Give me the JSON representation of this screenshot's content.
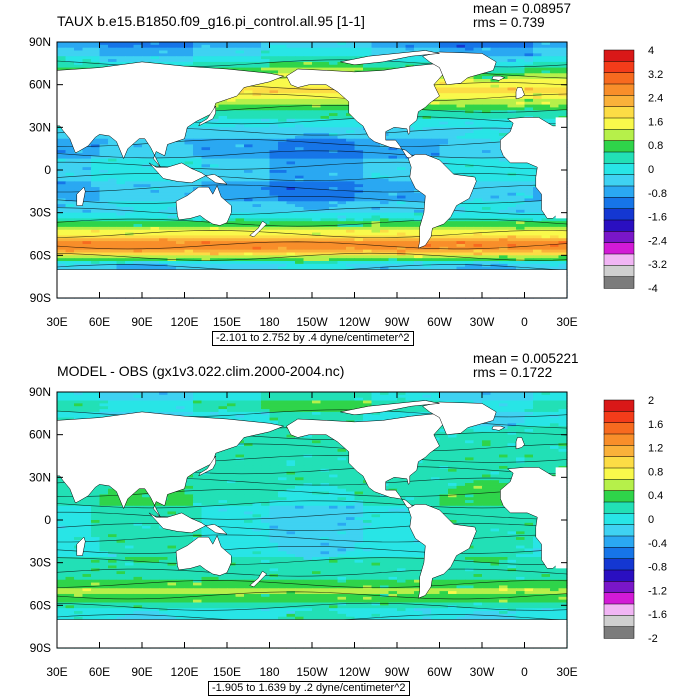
{
  "panels": [
    {
      "title": "TAUX b.e15.B1850.f09_g16.pi_control.all.95 [1-1]",
      "mean": "mean = 0.08957",
      "rms": "rms = 0.739",
      "range_label": "-2.101 to 2.752 by .4 dyne/centimeter^2",
      "colorbar_labels": [
        "4",
        "3.2",
        "2.4",
        "1.6",
        "0.8",
        "0",
        "-0.8",
        "-1.6",
        "-2.4",
        "-3.2",
        "-4"
      ],
      "colorbar_colors": [
        "#d91818",
        "#f43c1a",
        "#f76a1f",
        "#f88e2a",
        "#fab13a",
        "#fcdc45",
        "#f9f94b",
        "#b6f04a",
        "#2fd44a",
        "#22e0b6",
        "#28e5e6",
        "#3fd2f2",
        "#2aa8f2",
        "#1675e8",
        "#1437d2",
        "#2a0fc1",
        "#7a16c9",
        "#d21ad6",
        "#f1b5f4",
        "#cfcfcf",
        "#7c7c7c"
      ]
    },
    {
      "title": "MODEL - OBS (gx1v3.022.clim.2000-2004.nc)",
      "mean": "mean = 0.005221",
      "rms": "rms = 0.1722",
      "range_label": "-1.905 to 1.639 by .2 dyne/centimeter^2",
      "colorbar_labels": [
        "2",
        "1.6",
        "1.2",
        "0.8",
        "0.4",
        "0",
        "-0.4",
        "-0.8",
        "-1.2",
        "-1.6",
        "-2"
      ],
      "colorbar_colors": [
        "#d91818",
        "#f43c1a",
        "#f76a1f",
        "#f88e2a",
        "#fab13a",
        "#fcdc45",
        "#f9f94b",
        "#b6f04a",
        "#2fd44a",
        "#22e0b6",
        "#28e5e6",
        "#3fd2f2",
        "#2aa8f2",
        "#1675e8",
        "#1437d2",
        "#2a0fc1",
        "#7a16c9",
        "#d21ad6",
        "#f1b5f4",
        "#cfcfcf",
        "#7c7c7c"
      ]
    }
  ],
  "map": {
    "lat_labels": [
      "90N",
      "60N",
      "30N",
      "0",
      "30S",
      "60S",
      "90S"
    ],
    "lon_labels": [
      "30E",
      "60E",
      "90E",
      "120E",
      "150E",
      "180",
      "150W",
      "120W",
      "90W",
      "60W",
      "30W",
      "0",
      "30E"
    ],
    "land_color": "#ffffff"
  },
  "chart_data": [
    {
      "type": "heatmap",
      "title": "TAUX b.e15.B1850.f09_g16.pi_control.all.95 [1-1]",
      "xlabel": "",
      "ylabel": "",
      "x_ticks": [
        "30E",
        "60E",
        "90E",
        "120E",
        "150E",
        "180",
        "150W",
        "120W",
        "90W",
        "60W",
        "30W",
        "0",
        "30E"
      ],
      "y_ticks": [
        "90N",
        "60N",
        "30N",
        "0",
        "30S",
        "60S",
        "90S"
      ],
      "xlim": [
        30,
        390
      ],
      "ylim": [
        -90,
        90
      ],
      "mean": 0.08957,
      "rms": 0.739,
      "min": -2.101,
      "max": 2.752,
      "contour_interval": 0.4,
      "units": "dyne/centimeter^2",
      "colorbar_range": [
        -4,
        4
      ],
      "zonal_bands": [
        {
          "lat": 60,
          "value": 0.6
        },
        {
          "lat": 45,
          "value": 1.0
        },
        {
          "lat": 30,
          "value": 0.0
        },
        {
          "lat": 15,
          "value": -0.8
        },
        {
          "lat": 0,
          "value": -0.4
        },
        {
          "lat": -15,
          "value": -0.7
        },
        {
          "lat": -30,
          "value": 0.2
        },
        {
          "lat": -45,
          "value": 1.6
        },
        {
          "lat": -52,
          "value": 2.4
        },
        {
          "lat": -60,
          "value": 1.2
        }
      ]
    },
    {
      "type": "heatmap",
      "title": "MODEL - OBS (gx1v3.022.clim.2000-2004.nc)",
      "xlabel": "",
      "ylabel": "",
      "x_ticks": [
        "30E",
        "60E",
        "90E",
        "120E",
        "150E",
        "180",
        "150W",
        "120W",
        "90W",
        "60W",
        "30W",
        "0",
        "30E"
      ],
      "y_ticks": [
        "90N",
        "60N",
        "30N",
        "0",
        "30S",
        "60S",
        "90S"
      ],
      "xlim": [
        30,
        390
      ],
      "ylim": [
        -90,
        90
      ],
      "mean": 0.005221,
      "rms": 0.1722,
      "min": -1.905,
      "max": 1.639,
      "contour_interval": 0.2,
      "units": "dyne/centimeter^2",
      "colorbar_range": [
        -2,
        2
      ],
      "zonal_bands": [
        {
          "lat": 60,
          "value": 0.2
        },
        {
          "lat": 30,
          "value": 0.1
        },
        {
          "lat": 0,
          "value": -0.1
        },
        {
          "lat": -30,
          "value": 0.0
        },
        {
          "lat": -50,
          "value": 0.4
        },
        {
          "lat": -60,
          "value": 0.2
        }
      ]
    }
  ]
}
